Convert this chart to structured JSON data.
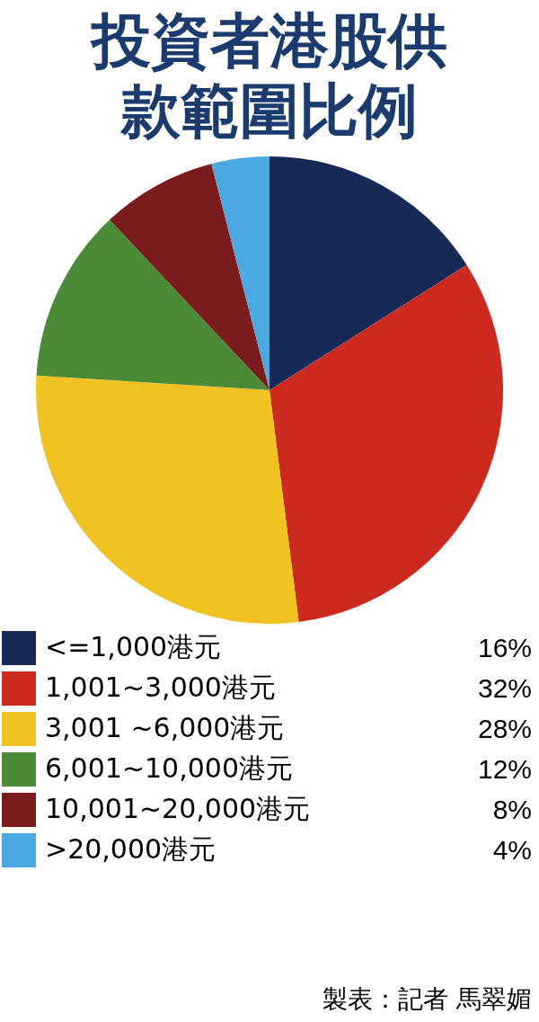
{
  "chart_data": {
    "type": "pie",
    "title": "投資者港股供款範圍比例",
    "categories": [
      "<=1,000港元",
      "1,001~3,000港元",
      "3,001 ~6,000港元",
      "6,001~10,000港元",
      "10,001~20,000港元",
      ">20,000港元"
    ],
    "values": [
      16,
      32,
      28,
      12,
      8,
      4
    ],
    "colors": [
      "#172a55",
      "#cc2a1e",
      "#f0c322",
      "#4b8a37",
      "#7a1b1d",
      "#4aa9e0"
    ],
    "value_labels": [
      "16%",
      "32%",
      "28%",
      "12%",
      "8%",
      "4%"
    ],
    "legend": "bottom",
    "annotations": [
      "製表：記者 馬翠媚"
    ]
  }
}
